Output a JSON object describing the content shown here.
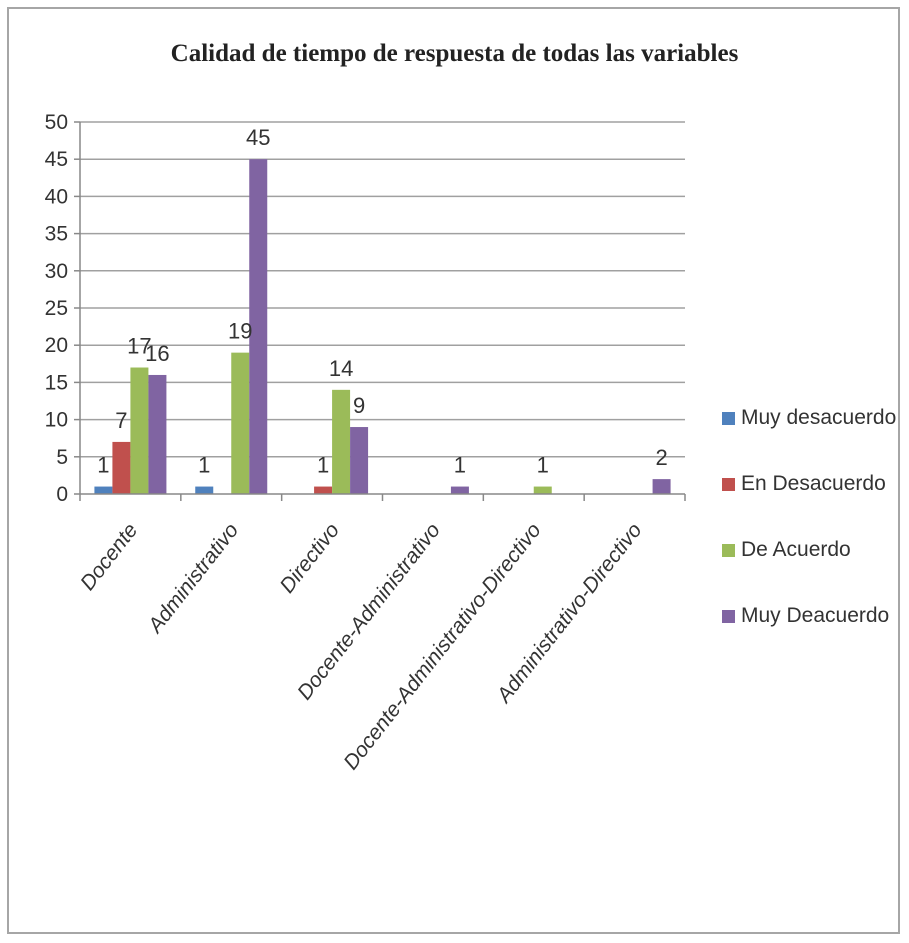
{
  "chart_data": {
    "type": "bar",
    "title": "Calidad de tiempo de respuesta de todas las variables",
    "categories": [
      "Docente",
      "Administrativo",
      "Directivo",
      "Docente-Administrativo",
      "Docente-Administrativo-Directivo",
      "Administrativo-Directivo"
    ],
    "series": [
      {
        "name": "Muy desacuerdo",
        "color": "#4f81bd",
        "values": [
          1,
          1,
          0,
          0,
          0,
          0
        ],
        "labels": [
          "1",
          "1",
          "",
          "",
          "",
          ""
        ]
      },
      {
        "name": "En Desacuerdo",
        "color": "#c0504d",
        "values": [
          7,
          0,
          1,
          0,
          0,
          0
        ],
        "labels": [
          "7",
          "",
          "1",
          "",
          "",
          ""
        ]
      },
      {
        "name": "De Acuerdo",
        "color": "#9bbb59",
        "values": [
          17,
          19,
          14,
          0,
          1,
          0
        ],
        "labels": [
          "17",
          "19",
          "14",
          "",
          "1",
          ""
        ]
      },
      {
        "name": "Muy Deacuerdo",
        "color": "#8064a2",
        "values": [
          16,
          45,
          9,
          1,
          0,
          2
        ],
        "labels": [
          "16",
          "45",
          "9",
          "1",
          "",
          "2"
        ]
      }
    ],
    "ylim": [
      0,
      50
    ],
    "yticks": [
      0,
      5,
      10,
      15,
      20,
      25,
      30,
      35,
      40,
      45,
      50
    ],
    "grid": true,
    "legend": "right"
  }
}
